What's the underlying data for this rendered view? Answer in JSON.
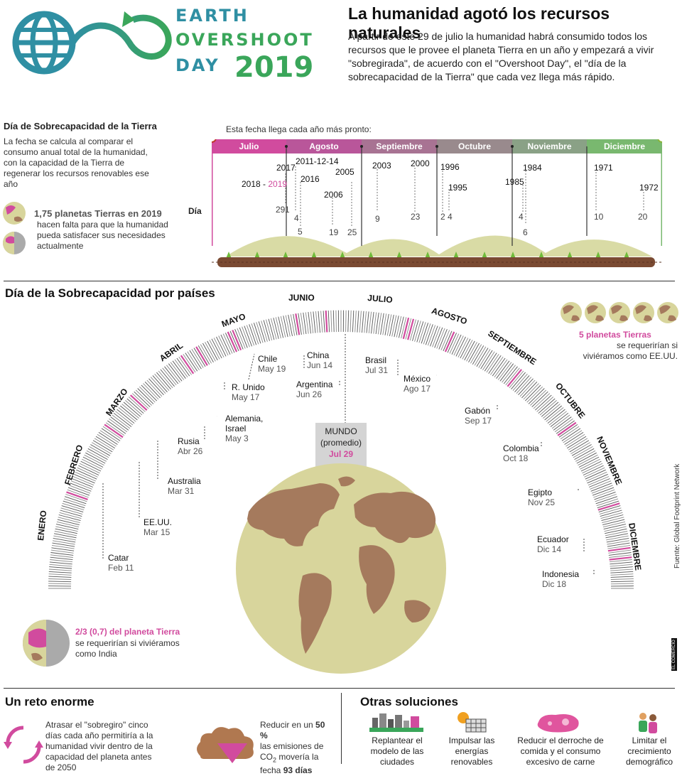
{
  "logo": {
    "line1": "EARTH",
    "line2": "OVERSHOOT",
    "line3": "DAY",
    "year": "2019"
  },
  "header": {
    "title": "La humanidad agotó los recursos naturales",
    "body": "A partir de este 29 de julio la humanidad habrá consumido todos los recursos que le provee el planeta Tierra en un año y empezará a vivir \"sobregirada\", de acuerdo con el \"Overshoot Day\", el \"día de la sobrecapacidad de la Tierra\" que cada vez llega más rápido."
  },
  "side": {
    "title": "Día de Sobrecapacidad de la Tierra",
    "desc": "La fecha se calcula al comparar el consumo anual total de la humanidad, con la capacidad de la Tierra de regenerar los recursos renovables ese año",
    "planets_bold": "1,75 planetas Tierras en 2019",
    "planets_rest": "hacen falta para que la humanidad pueda satisfacer sus necesidades actualmente"
  },
  "timeline": {
    "caption": "Esta fecha llega cada año más pronto:",
    "day_label": "Día",
    "months": [
      "Julio",
      "Agosto",
      "Septiembre",
      "Octubre",
      "Noviembre",
      "Diciembre"
    ],
    "colors": [
      "#d14b9e",
      "#b9569a",
      "#a87393",
      "#998a8d",
      "#8aa186",
      "#79b86f"
    ],
    "years": [
      {
        "label": "2018 - ",
        "hl": "2019",
        "day": "29",
        "dday": "1"
      },
      {
        "label": "2017",
        "day": "5"
      },
      {
        "label": "2011-12-14",
        "day": "4"
      },
      {
        "label": "2016",
        "day": "19"
      },
      {
        "label": "2006",
        "day": "25"
      },
      {
        "label": "2005",
        "day": ""
      },
      {
        "label": "2003",
        "day": "9"
      },
      {
        "label": "2000",
        "day": "23"
      },
      {
        "label": "1996",
        "day": "2"
      },
      {
        "label": "1995",
        "day": "4"
      },
      {
        "label": "1985",
        "day": "4"
      },
      {
        "label": "1984",
        "day": "6"
      },
      {
        "label": "1971",
        "day": "10"
      },
      {
        "label": "1972",
        "day": "20"
      }
    ]
  },
  "countries_section": {
    "title": "Día de la Sobrecapacidad por países",
    "months": [
      "ENERO",
      "FEBRERO",
      "MARZO",
      "ABRIL",
      "MAYO",
      "JUNIO",
      "JULIO",
      "AGOSTO",
      "SEPTIEMBRE",
      "OCTUBRE",
      "NOVIEMBRE",
      "DICIEMBRE"
    ],
    "countries": [
      {
        "name": "Catar",
        "date": "Feb 11"
      },
      {
        "name": "EE.UU.",
        "date": "Mar 15"
      },
      {
        "name": "Australia",
        "date": "Mar 31"
      },
      {
        "name": "Rusia",
        "date": "Abr 26"
      },
      {
        "name": "Alemania,\nIsrael",
        "date": "May 3"
      },
      {
        "name": "R. Unido",
        "date": "May 17"
      },
      {
        "name": "Chile",
        "date": "May 19"
      },
      {
        "name": "China",
        "date": "Jun 14"
      },
      {
        "name": "Argentina",
        "date": "Jun 26"
      },
      {
        "name": "Brasil",
        "date": "Jul 31"
      },
      {
        "name": "México",
        "date": "Ago 17"
      },
      {
        "name": "Gabón",
        "date": "Sep 17"
      },
      {
        "name": "Colombia",
        "date": "Oct 18"
      },
      {
        "name": "Egipto",
        "date": "Nov 25"
      },
      {
        "name": "Ecuador",
        "date": "Dic 14"
      },
      {
        "name": "Indonesia",
        "date": "Dic 18"
      }
    ],
    "world": {
      "label": "MUNDO",
      "sub": "(promedio)",
      "date": "Jul 29"
    },
    "usa_bold": "5 planetas Tierras",
    "usa_rest": "se requerirían si viviéramos como EE.UU.",
    "india_bold": "2/3 (0,7) del planeta Tierra",
    "india_rest": "se requerirían si viviéramos como India",
    "source": "Fuente: Global Footprint Network",
    "credit": "EL COMERCIO"
  },
  "footer": {
    "reto_title": "Un reto enorme",
    "reto_text": "Atrasar el \"sobregiro\" cinco días cada año permitiría a la humanidad vivir dentro de la capacidad del planeta antes de 2050",
    "co2_pre": "Reducir en un ",
    "co2_pct": "50 %",
    "co2_mid": "las emisiones de",
    "co2_chem": "CO",
    "co2_sub": "2",
    "co2_post": " movería la fecha ",
    "co2_days": "93 días",
    "otras_title": "Otras soluciones",
    "solutions": [
      "Replantear el modelo de las ciudades",
      "Impulsar las energías renovables",
      "Reducir el derroche de comida y el consumo excesivo de carne",
      "Limitar el crecimiento demográfico"
    ]
  },
  "colors": {
    "accent": "#d14b9e",
    "green": "#3aa65a",
    "teal": "#2f8fa3",
    "soil": "#7a4a32",
    "earth_land": "#a57a5d",
    "earth_sea": "#d8d59c"
  }
}
